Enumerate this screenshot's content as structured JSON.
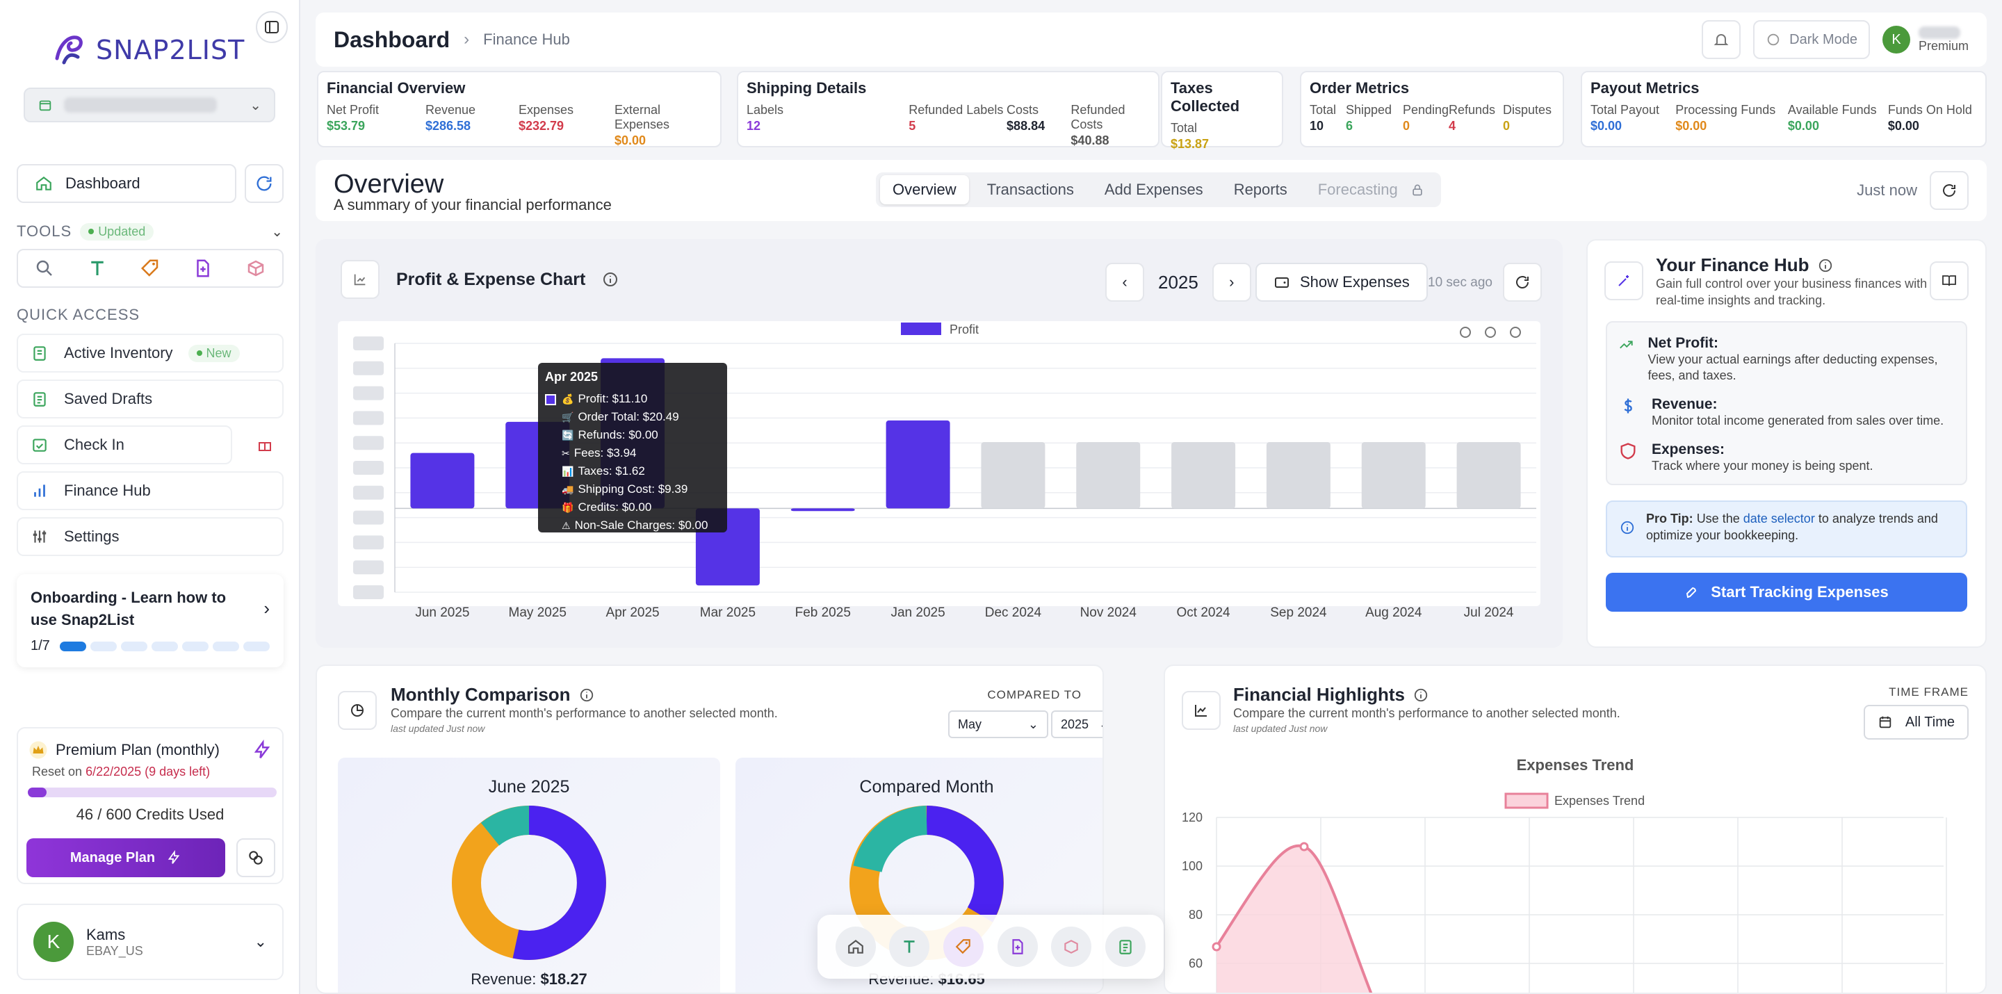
{
  "brand": {
    "name": "SNAP2LIST"
  },
  "sidebar": {
    "dashboard_label": "Dashboard",
    "tools_label": "TOOLS",
    "tools_badge": "Updated",
    "quick_access_label": "QUICK ACCESS",
    "items": [
      {
        "label": "Active Inventory",
        "badge": "New"
      },
      {
        "label": "Saved Drafts"
      },
      {
        "label": "Check In"
      },
      {
        "label": "Finance Hub"
      },
      {
        "label": "Settings"
      }
    ],
    "onboarding": {
      "title": "Onboarding - Learn how to use Snap2List",
      "progress_text": "1/7",
      "steps_total": 7,
      "steps_done": 1
    },
    "plan": {
      "name": "Premium Plan (monthly)",
      "reset_prefix": "Reset on",
      "reset_date": "6/22/2025 (9 days left)",
      "credits_text": "46 / 600 Credits Used",
      "credits_used": 46,
      "credits_total": 600,
      "manage_label": "Manage Plan"
    },
    "user": {
      "name": "Kams",
      "store": "EBAY_US",
      "initial": "K"
    }
  },
  "header": {
    "title": "Dashboard",
    "breadcrumb": "Finance Hub",
    "dark_mode_label": "Dark Mode",
    "user_initial": "K",
    "user_tier": "Premium"
  },
  "metrics": {
    "financial": {
      "title": "Financial Overview",
      "cols": [
        {
          "label": "Net Profit",
          "value": "$53.79",
          "color": "#3ba55c"
        },
        {
          "label": "Revenue",
          "value": "$286.58",
          "color": "#2f6fd6"
        },
        {
          "label": "Expenses",
          "value": "$232.79",
          "color": "#d23b4b"
        },
        {
          "label": "External Expenses",
          "value": "$0.00",
          "color": "#e0891b"
        }
      ]
    },
    "shipping": {
      "title": "Shipping Details",
      "cols": [
        {
          "label": "Labels",
          "value": "12",
          "color": "#8a3ad8"
        },
        {
          "label": "Refunded Labels",
          "value": "5",
          "color": "#d23b4b"
        },
        {
          "label": "Costs",
          "value": "$88.84",
          "color": "#1f2430"
        },
        {
          "label": "Refunded Costs",
          "value": "$40.88",
          "color": "#555"
        }
      ]
    },
    "taxes": {
      "title": "Taxes Collected",
      "cols": [
        {
          "label": "Total",
          "value": "$13.87",
          "color": "#c9a214"
        }
      ]
    },
    "orders": {
      "title": "Order Metrics",
      "cols": [
        {
          "label": "Total",
          "value": "10",
          "color": "#1f2430"
        },
        {
          "label": "Shipped",
          "value": "6",
          "color": "#3ba55c"
        },
        {
          "label": "Pending",
          "value": "0",
          "color": "#e0891b"
        },
        {
          "label": "Refunds",
          "value": "4",
          "color": "#d23b4b"
        },
        {
          "label": "Disputes",
          "value": "0",
          "color": "#c9a214"
        }
      ]
    },
    "payout": {
      "title": "Payout Metrics",
      "cols": [
        {
          "label": "Total Payout",
          "value": "$0.00",
          "color": "#2f6fd6"
        },
        {
          "label": "Processing Funds",
          "value": "$0.00",
          "color": "#e0891b"
        },
        {
          "label": "Available Funds",
          "value": "$0.00",
          "color": "#3ba55c"
        },
        {
          "label": "Funds On Hold",
          "value": "$0.00",
          "color": "#1f2430"
        }
      ]
    }
  },
  "overview": {
    "title": "Overview",
    "subtitle": "A summary of your financial performance",
    "tabs": [
      "Overview",
      "Transactions",
      "Add Expenses",
      "Reports",
      "Forecasting"
    ],
    "updated": "Just now"
  },
  "profit_chart": {
    "title": "Profit & Expense Chart",
    "year": "2025",
    "show_expenses_label": "Show Expenses",
    "updated": "10 sec ago",
    "tooltip": {
      "title": "Apr 2025",
      "rows": [
        {
          "icon": "money-bag-icon",
          "text": "Profit: $11.10"
        },
        {
          "icon": "cart-icon",
          "text": "Order Total: $20.49"
        },
        {
          "icon": "refund-icon",
          "text": "Refunds: $0.00"
        },
        {
          "icon": "fees-icon",
          "text": "Fees: $3.94"
        },
        {
          "icon": "taxes-icon",
          "text": "Taxes: $1.62"
        },
        {
          "icon": "truck-icon",
          "text": "Shipping Cost: $9.39"
        },
        {
          "icon": "gift-icon",
          "text": "Credits: $0.00"
        },
        {
          "icon": "warning-icon",
          "text": "Non-Sale Charges: $0.00"
        }
      ]
    }
  },
  "chart_data": {
    "type": "bar",
    "categories": [
      "Jun 2025",
      "May 2025",
      "Apr 2025",
      "Mar 2025",
      "Feb 2025",
      "Jan 2025",
      "Dec 2024",
      "Nov 2024",
      "Oct 2024",
      "Sep 2024",
      "Aug 2024",
      "Jul 2024"
    ],
    "series": [
      {
        "name": "Profit",
        "values": [
          4.1,
          6.4,
          11.1,
          -5.7,
          -0.2,
          6.5,
          null,
          null,
          null,
          null,
          null,
          null
        ]
      }
    ],
    "placeholder_categories": [
      "Dec 2024",
      "Nov 2024",
      "Oct 2024",
      "Sep 2024",
      "Aug 2024",
      "Jul 2024"
    ],
    "ylim": [
      -6.2,
      12.2
    ],
    "legend": "top-center",
    "colors": {
      "profit": "#5533e6",
      "placeholder": "#d9dbe0"
    },
    "grid": true
  },
  "hub": {
    "title": "Your Finance Hub",
    "subtitle": "Gain full control over your business finances with real-time insights and tracking.",
    "items": [
      {
        "title": "Net Profit:",
        "desc": "View your actual earnings after deducting expenses, fees, and taxes."
      },
      {
        "title": "Revenue:",
        "desc": "Monitor total income generated from sales over time."
      },
      {
        "title": "Expenses:",
        "desc": "Track where your money is being spent."
      }
    ],
    "protip_label": "Pro Tip:",
    "protip_pre": "Use the",
    "protip_link": "date selector",
    "protip_post": "to analyze trends and optimize your bookkeeping.",
    "start_label": "Start Tracking Expenses"
  },
  "monthly": {
    "title": "Monthly Comparison",
    "subtitle": "Compare the current month's performance to another selected month.",
    "updated": "last updated Just now",
    "compared_to_label": "COMPARED TO",
    "month_select": "May",
    "year_select": "2025",
    "left": {
      "title": "June 2025",
      "revenue_label": "Revenue:",
      "revenue": "$18.27"
    },
    "right": {
      "title": "Compared Month",
      "revenue_label": "Revenue:",
      "revenue": "$16.65"
    }
  },
  "highlights": {
    "title": "Financial Highlights",
    "subtitle": "Compare the current month's performance to another selected month.",
    "updated": "last updated Just now",
    "time_frame_label": "TIME FRAME",
    "time_frame_value": "All Time",
    "chart_title": "Expenses Trend",
    "legend": "Expenses Trend",
    "yticks": [
      "120",
      "100",
      "80",
      "60"
    ]
  }
}
